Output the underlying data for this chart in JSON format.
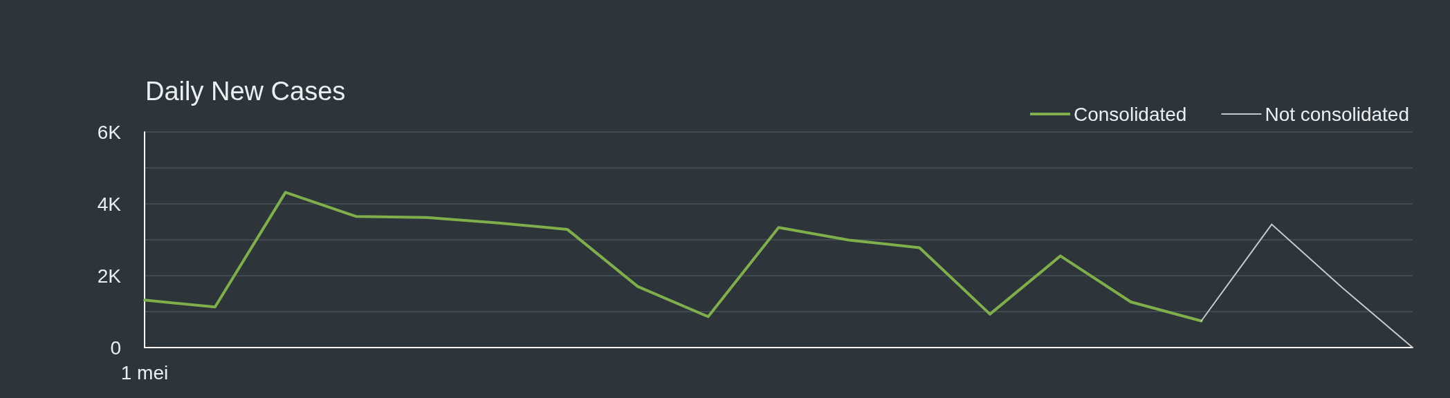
{
  "chart_data": {
    "type": "line",
    "title": "Daily New Cases",
    "categories": [
      "1 mei",
      null,
      null,
      null,
      null,
      null,
      null,
      null,
      null,
      null,
      null,
      null,
      null,
      null,
      null,
      null,
      null,
      null,
      null
    ],
    "series": [
      {
        "name": "Consolidated",
        "color": "#7fae4b",
        "values": [
          1320,
          1130,
          4320,
          3650,
          3620,
          3470,
          3290,
          1700,
          860,
          3340,
          2990,
          2780,
          930,
          2550,
          1270,
          740,
          null,
          null,
          null
        ]
      },
      {
        "name": "Not consolidated",
        "color": "#c8c8c8",
        "values": [
          null,
          null,
          null,
          null,
          null,
          null,
          null,
          null,
          null,
          null,
          null,
          null,
          null,
          null,
          null,
          740,
          3430,
          1670,
          0
        ]
      }
    ],
    "ylim": [
      0,
      6000
    ],
    "yticks": [
      0,
      {
        "value": 1000,
        "label": null
      },
      {
        "value": 2000,
        "label": "2K"
      },
      {
        "value": 3000,
        "label": null
      },
      {
        "value": 4000,
        "label": "4K"
      },
      {
        "value": 5000,
        "label": null
      },
      {
        "value": 6000,
        "label": "6K"
      }
    ],
    "grid": "y",
    "legend": "top right",
    "marker": "none"
  }
}
